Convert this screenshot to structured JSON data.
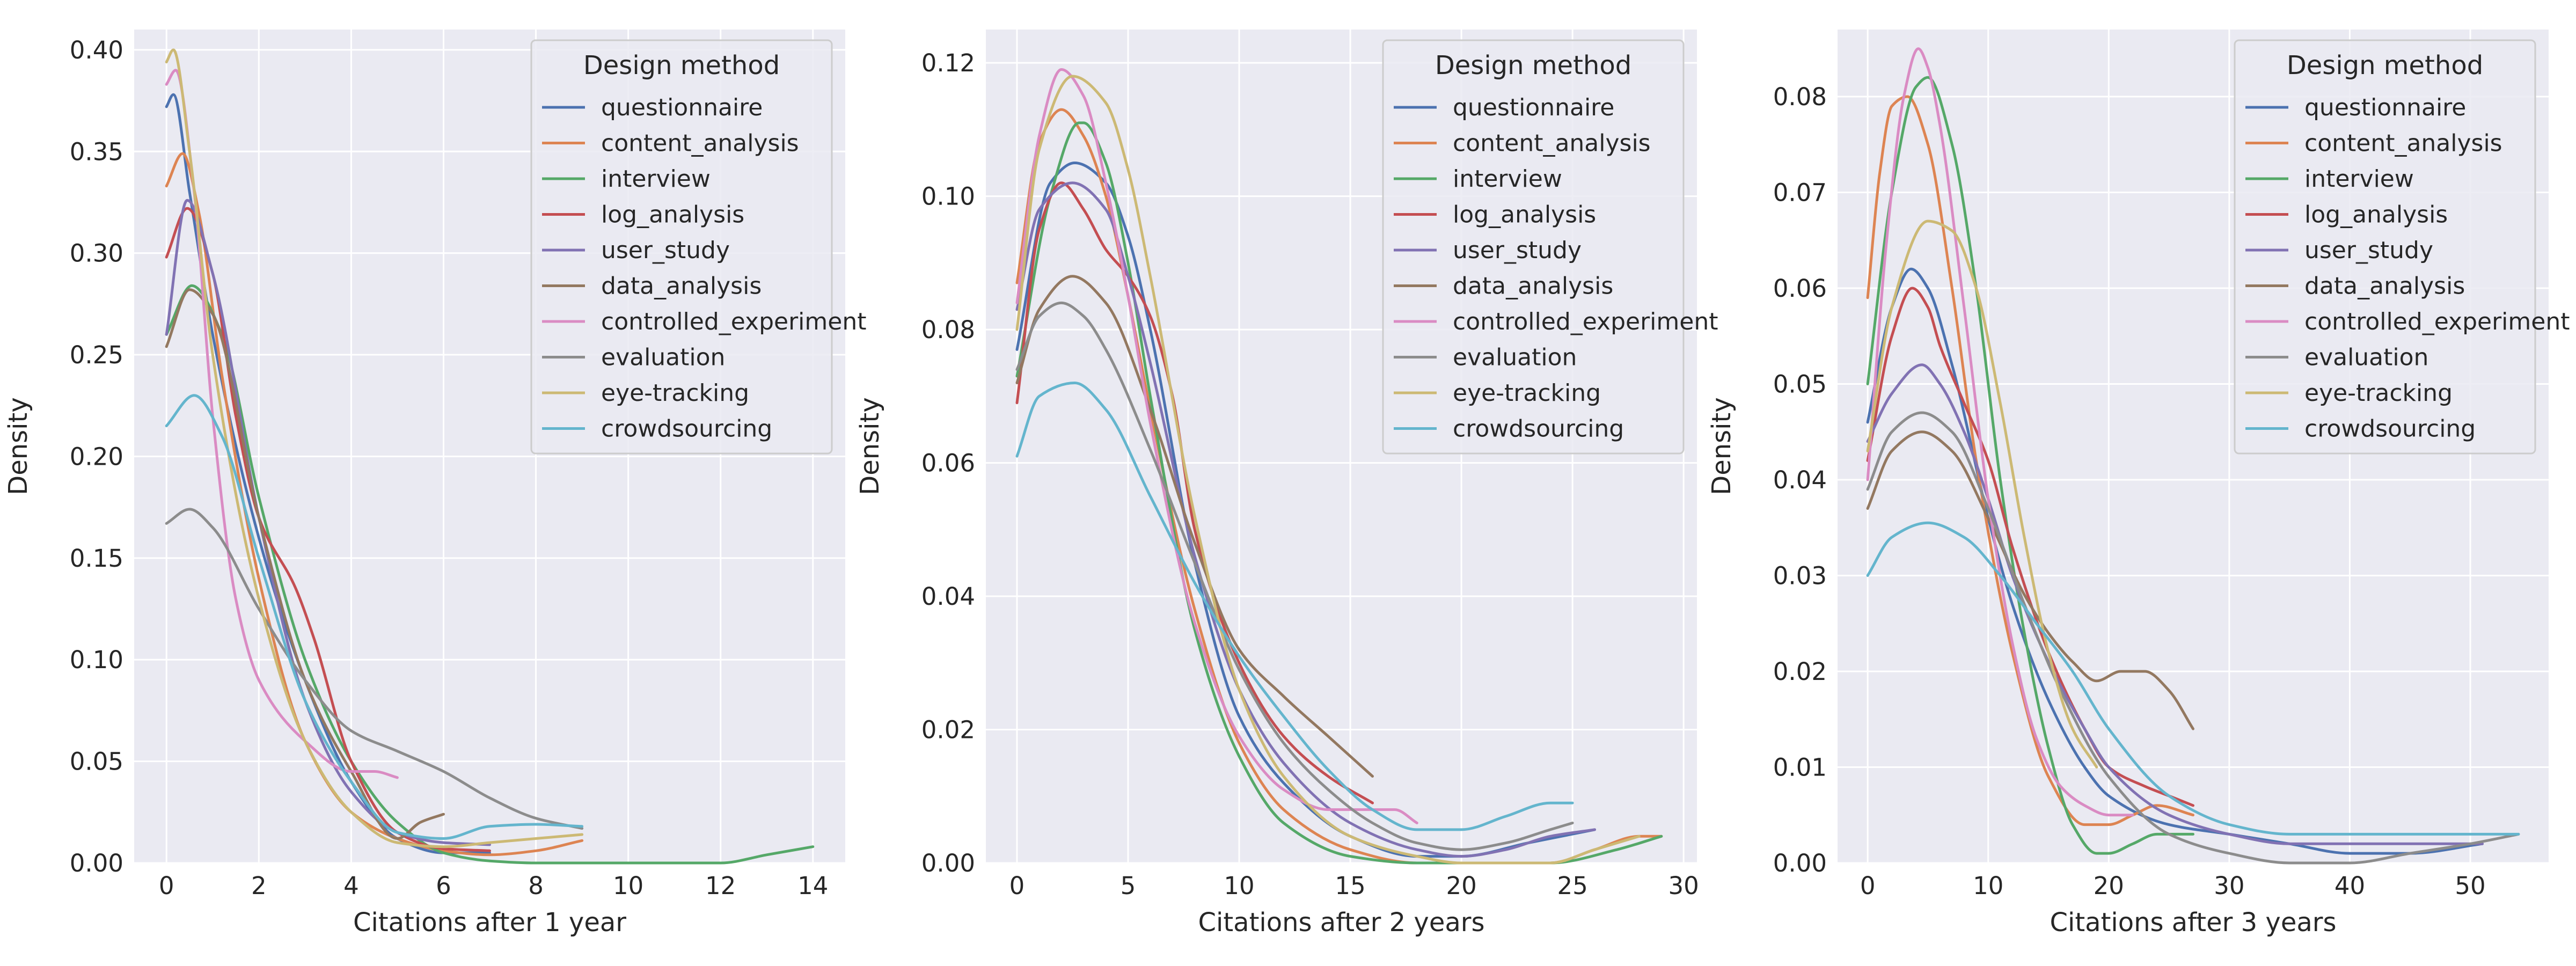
{
  "legend": {
    "title": "Design method",
    "series": [
      {
        "name": "questionnaire",
        "color": "#4c72b0"
      },
      {
        "name": "content_analysis",
        "color": "#dd8452"
      },
      {
        "name": "interview",
        "color": "#55a868"
      },
      {
        "name": "log_analysis",
        "color": "#c44e52"
      },
      {
        "name": "user_study",
        "color": "#8172b3"
      },
      {
        "name": "data_analysis",
        "color": "#937860"
      },
      {
        "name": "controlled_experiment",
        "color": "#da8bc3"
      },
      {
        "name": "evaluation",
        "color": "#8c8c8c"
      },
      {
        "name": "eye-tracking",
        "color": "#ccb974"
      },
      {
        "name": "crowdsourcing",
        "color": "#64b5cd"
      }
    ]
  },
  "chart_data": [
    {
      "type": "line",
      "xlabel": "Citations after 1 year",
      "ylabel": "Density",
      "xlim": [
        -0.7,
        14.7
      ],
      "ylim": [
        0,
        0.41
      ],
      "xticks": [
        0,
        2,
        4,
        6,
        8,
        10,
        12,
        14
      ],
      "yticks": [
        0.0,
        0.05,
        0.1,
        0.15,
        0.2,
        0.25,
        0.3,
        0.35,
        0.4
      ],
      "ytick_format": 2,
      "grid": true,
      "legend_position": "top-right",
      "series": [
        {
          "name": "questionnaire",
          "x": [
            0,
            0.15,
            0.5,
            1,
            2,
            3,
            4,
            5,
            6,
            7
          ],
          "y": [
            0.372,
            0.378,
            0.33,
            0.26,
            0.16,
            0.09,
            0.04,
            0.012,
            0.005,
            0.005
          ]
        },
        {
          "name": "content_analysis",
          "x": [
            0,
            0.35,
            0.7,
            1.2,
            2,
            3,
            4,
            5,
            6,
            7,
            8,
            9
          ],
          "y": [
            0.333,
            0.349,
            0.32,
            0.24,
            0.14,
            0.06,
            0.025,
            0.012,
            0.006,
            0.004,
            0.006,
            0.011
          ]
        },
        {
          "name": "interview",
          "x": [
            0,
            0.55,
            1.2,
            2,
            3,
            4,
            5,
            6,
            7,
            8,
            10,
            12,
            13,
            14
          ],
          "y": [
            0.26,
            0.284,
            0.26,
            0.18,
            0.1,
            0.05,
            0.02,
            0.005,
            0.001,
            0.0,
            0.0,
            0.0,
            0.004,
            0.008
          ]
        },
        {
          "name": "log_analysis",
          "x": [
            0,
            0.45,
            1,
            1.5,
            2,
            2.8,
            3.2,
            4,
            5,
            6,
            7
          ],
          "y": [
            0.298,
            0.322,
            0.29,
            0.22,
            0.17,
            0.135,
            0.11,
            0.05,
            0.015,
            0.007,
            0.006
          ]
        },
        {
          "name": "user_study",
          "x": [
            0,
            0.45,
            1,
            2,
            3,
            4,
            5,
            6,
            7
          ],
          "y": [
            0.26,
            0.326,
            0.29,
            0.17,
            0.08,
            0.035,
            0.015,
            0.01,
            0.009
          ]
        },
        {
          "name": "data_analysis",
          "x": [
            0,
            0.5,
            1,
            2,
            3,
            4,
            5,
            5.5,
            6
          ],
          "y": [
            0.254,
            0.282,
            0.27,
            0.17,
            0.09,
            0.045,
            0.012,
            0.02,
            0.024
          ]
        },
        {
          "name": "controlled_experiment",
          "x": [
            0,
            0.2,
            0.6,
            1,
            1.5,
            2,
            3,
            4,
            4.5,
            5
          ],
          "y": [
            0.383,
            0.39,
            0.33,
            0.22,
            0.13,
            0.09,
            0.06,
            0.045,
            0.045,
            0.042
          ]
        },
        {
          "name": "evaluation",
          "x": [
            0,
            0.5,
            1,
            2,
            3,
            4,
            5,
            6,
            7,
            8,
            9
          ],
          "y": [
            0.167,
            0.174,
            0.165,
            0.125,
            0.09,
            0.065,
            0.055,
            0.045,
            0.032,
            0.022,
            0.017
          ]
        },
        {
          "name": "eye-tracking",
          "x": [
            0,
            0.15,
            0.5,
            1,
            2,
            3,
            4,
            5,
            6,
            7,
            8,
            9
          ],
          "y": [
            0.394,
            0.4,
            0.35,
            0.25,
            0.13,
            0.06,
            0.025,
            0.01,
            0.008,
            0.01,
            0.012,
            0.014
          ]
        },
        {
          "name": "crowdsourcing",
          "x": [
            0,
            0.6,
            1.2,
            2,
            3,
            4,
            5,
            6,
            7,
            8,
            9
          ],
          "y": [
            0.215,
            0.23,
            0.21,
            0.15,
            0.08,
            0.04,
            0.015,
            0.012,
            0.018,
            0.019,
            0.018
          ]
        }
      ]
    },
    {
      "type": "line",
      "xlabel": "Citations after 2 years",
      "ylabel": "Density",
      "xlim": [
        -1.4,
        30.6
      ],
      "ylim": [
        0,
        0.125
      ],
      "xticks": [
        0,
        5,
        10,
        15,
        20,
        25,
        30
      ],
      "yticks": [
        0.0,
        0.02,
        0.04,
        0.06,
        0.08,
        0.1,
        0.12
      ],
      "ytick_format": 2,
      "grid": true,
      "legend_position": "top-right",
      "series": [
        {
          "name": "questionnaire",
          "x": [
            0,
            1.5,
            2.6,
            4,
            5,
            6,
            8,
            10,
            12,
            15,
            18,
            20,
            23,
            26
          ],
          "y": [
            0.077,
            0.102,
            0.105,
            0.102,
            0.094,
            0.08,
            0.045,
            0.022,
            0.012,
            0.004,
            0.001,
            0.001,
            0.003,
            0.005
          ]
        },
        {
          "name": "content_analysis",
          "x": [
            0,
            1,
            2,
            3,
            4,
            5,
            6,
            8,
            10,
            12,
            15,
            18,
            20,
            24,
            26,
            28,
            29
          ],
          "y": [
            0.087,
            0.108,
            0.113,
            0.109,
            0.1,
            0.085,
            0.068,
            0.038,
            0.018,
            0.008,
            0.002,
            0.0,
            0.0,
            0.0,
            0.002,
            0.004,
            0.004
          ]
        },
        {
          "name": "interview",
          "x": [
            0,
            1.5,
            2.8,
            3,
            4,
            5,
            6,
            8,
            10,
            12,
            15,
            18,
            20,
            24,
            27,
            29
          ],
          "y": [
            0.073,
            0.1,
            0.111,
            0.111,
            0.105,
            0.09,
            0.07,
            0.035,
            0.016,
            0.006,
            0.001,
            0.0,
            0.0,
            0.0,
            0.002,
            0.004
          ]
        },
        {
          "name": "log_analysis",
          "x": [
            0,
            1,
            2,
            3,
            4,
            5,
            6,
            7,
            8,
            10,
            12,
            14,
            16
          ],
          "y": [
            0.069,
            0.095,
            0.102,
            0.098,
            0.092,
            0.088,
            0.082,
            0.07,
            0.05,
            0.03,
            0.019,
            0.013,
            0.009
          ]
        },
        {
          "name": "user_study",
          "x": [
            0,
            1,
            2.5,
            4,
            5,
            6,
            8,
            10,
            12,
            15,
            18,
            20,
            22,
            24,
            26
          ],
          "y": [
            0.083,
            0.098,
            0.102,
            0.098,
            0.088,
            0.075,
            0.046,
            0.026,
            0.015,
            0.006,
            0.002,
            0.001,
            0.002,
            0.004,
            0.005
          ]
        },
        {
          "name": "data_analysis",
          "x": [
            0,
            1,
            2.5,
            4,
            6,
            8,
            10,
            12,
            14,
            16
          ],
          "y": [
            0.072,
            0.083,
            0.088,
            0.084,
            0.068,
            0.048,
            0.032,
            0.025,
            0.019,
            0.013
          ]
        },
        {
          "name": "controlled_experiment",
          "x": [
            0,
            1,
            2,
            3,
            4,
            5,
            6,
            8,
            10,
            12,
            14,
            15,
            16,
            17,
            18
          ],
          "y": [
            0.084,
            0.109,
            0.119,
            0.115,
            0.102,
            0.085,
            0.066,
            0.036,
            0.019,
            0.011,
            0.008,
            0.008,
            0.008,
            0.008,
            0.006
          ]
        },
        {
          "name": "evaluation",
          "x": [
            0,
            1,
            2,
            3,
            4,
            6,
            8,
            10,
            12,
            14,
            16,
            18,
            20,
            22,
            24,
            25
          ],
          "y": [
            0.074,
            0.082,
            0.084,
            0.082,
            0.077,
            0.062,
            0.045,
            0.029,
            0.018,
            0.011,
            0.006,
            0.003,
            0.002,
            0.003,
            0.005,
            0.006
          ]
        },
        {
          "name": "eye-tracking",
          "x": [
            0,
            1,
            2.5,
            4,
            5,
            6,
            8,
            10,
            12,
            15,
            18,
            20,
            24,
            26,
            28
          ],
          "y": [
            0.08,
            0.107,
            0.118,
            0.114,
            0.104,
            0.088,
            0.052,
            0.026,
            0.013,
            0.004,
            0.001,
            0.0,
            0.0,
            0.002,
            0.004
          ]
        },
        {
          "name": "crowdsourcing",
          "x": [
            0,
            1,
            2.6,
            4,
            6,
            8,
            10,
            12,
            14,
            16,
            18,
            20,
            22,
            24,
            25
          ],
          "y": [
            0.061,
            0.07,
            0.072,
            0.068,
            0.055,
            0.042,
            0.031,
            0.022,
            0.014,
            0.008,
            0.005,
            0.005,
            0.007,
            0.009,
            0.009
          ]
        }
      ]
    },
    {
      "type": "line",
      "xlabel": "Citations after 3 years",
      "ylabel": "Density",
      "xlim": [
        -2.5,
        56.5
      ],
      "ylim": [
        0,
        0.087
      ],
      "xticks": [
        0,
        10,
        20,
        30,
        40,
        50
      ],
      "yticks": [
        0.0,
        0.01,
        0.02,
        0.03,
        0.04,
        0.05,
        0.06,
        0.07,
        0.08
      ],
      "ytick_format": 2,
      "grid": true,
      "legend_position": "top-right",
      "series": [
        {
          "name": "questionnaire",
          "x": [
            0,
            2,
            3.6,
            5,
            7,
            10,
            12,
            15,
            18,
            20,
            25,
            30,
            35,
            40,
            45,
            51
          ],
          "y": [
            0.046,
            0.058,
            0.062,
            0.06,
            0.052,
            0.036,
            0.027,
            0.017,
            0.01,
            0.007,
            0.004,
            0.003,
            0.002,
            0.001,
            0.001,
            0.002
          ]
        },
        {
          "name": "content_analysis",
          "x": [
            0,
            1,
            2,
            3.3,
            5,
            7,
            9,
            12,
            15,
            18,
            20,
            22,
            24,
            27
          ],
          "y": [
            0.059,
            0.072,
            0.079,
            0.08,
            0.075,
            0.06,
            0.042,
            0.022,
            0.009,
            0.004,
            0.004,
            0.005,
            0.006,
            0.005
          ]
        },
        {
          "name": "interview",
          "x": [
            0,
            2,
            4,
            5,
            7,
            9,
            11,
            13,
            15,
            17,
            19,
            20,
            22,
            24,
            27
          ],
          "y": [
            0.05,
            0.07,
            0.081,
            0.082,
            0.075,
            0.06,
            0.04,
            0.024,
            0.012,
            0.004,
            0.001,
            0.001,
            0.002,
            0.003,
            0.003
          ]
        },
        {
          "name": "log_analysis",
          "x": [
            0,
            2,
            3.7,
            5,
            6,
            8,
            10,
            12,
            15,
            18,
            20,
            23,
            25,
            27
          ],
          "y": [
            0.042,
            0.055,
            0.06,
            0.058,
            0.054,
            0.048,
            0.042,
            0.033,
            0.022,
            0.014,
            0.01,
            0.008,
            0.007,
            0.006
          ]
        },
        {
          "name": "user_study",
          "x": [
            0,
            2,
            4.5,
            6,
            8,
            10,
            12,
            15,
            18,
            20,
            25,
            30,
            35,
            40,
            45,
            51
          ],
          "y": [
            0.044,
            0.049,
            0.052,
            0.05,
            0.045,
            0.038,
            0.03,
            0.021,
            0.014,
            0.01,
            0.005,
            0.003,
            0.002,
            0.002,
            0.002,
            0.002
          ]
        },
        {
          "name": "data_analysis",
          "x": [
            0,
            2,
            4.5,
            7,
            10,
            13,
            15,
            17,
            19,
            21,
            23,
            25,
            27
          ],
          "y": [
            0.037,
            0.043,
            0.045,
            0.043,
            0.036,
            0.028,
            0.024,
            0.021,
            0.019,
            0.02,
            0.02,
            0.018,
            0.014
          ]
        },
        {
          "name": "controlled_experiment",
          "x": [
            0,
            1.5,
            3,
            4.2,
            5,
            6,
            8,
            10,
            12,
            14,
            16,
            18,
            20,
            22
          ],
          "y": [
            0.04,
            0.064,
            0.08,
            0.085,
            0.083,
            0.077,
            0.058,
            0.038,
            0.023,
            0.013,
            0.008,
            0.006,
            0.005,
            0.005
          ]
        },
        {
          "name": "evaluation",
          "x": [
            0,
            2,
            4.5,
            7,
            10,
            13,
            16,
            20,
            25,
            30,
            35,
            40,
            45,
            50,
            54
          ],
          "y": [
            0.039,
            0.045,
            0.047,
            0.045,
            0.037,
            0.027,
            0.018,
            0.009,
            0.003,
            0.001,
            0.0,
            0.0,
            0.001,
            0.002,
            0.003
          ]
        },
        {
          "name": "eye-tracking",
          "x": [
            0,
            2,
            5,
            7,
            9,
            11,
            13,
            15,
            17,
            19
          ],
          "y": [
            0.043,
            0.058,
            0.067,
            0.066,
            0.06,
            0.048,
            0.034,
            0.022,
            0.014,
            0.01
          ]
        },
        {
          "name": "crowdsourcing",
          "x": [
            0,
            2,
            5,
            8,
            11,
            14,
            17,
            20,
            25,
            30,
            35,
            40,
            45,
            50,
            54
          ],
          "y": [
            0.03,
            0.034,
            0.0355,
            0.034,
            0.03,
            0.025,
            0.02,
            0.014,
            0.007,
            0.004,
            0.003,
            0.003,
            0.003,
            0.003,
            0.003
          ]
        }
      ]
    }
  ]
}
